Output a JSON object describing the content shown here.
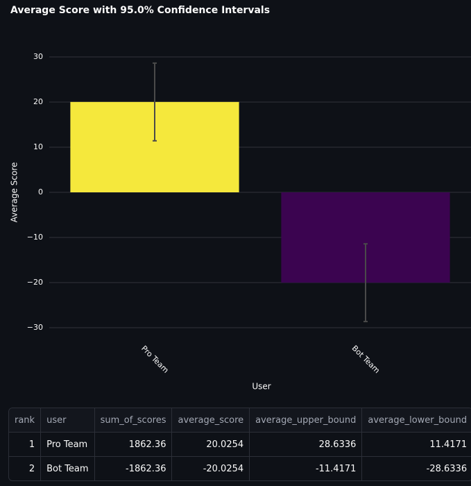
{
  "chart_data": {
    "type": "bar",
    "title": "Average Score with 95.0% Confidence Intervals",
    "x_label": "User",
    "y_label": "Average Score",
    "categories": [
      "Pro Team",
      "Bot Team"
    ],
    "values": [
      20.0254,
      -20.0254
    ],
    "upper": [
      28.6336,
      -11.4171
    ],
    "lower": [
      11.4171,
      -28.6336
    ],
    "colors": [
      "#f5e83c",
      "#3b0450"
    ],
    "error_color": "#4a4a4a",
    "ylim": [
      -34,
      35
    ],
    "yticks": [
      30,
      20,
      10,
      0,
      {
        "value": -10,
        "label": "−10"
      },
      {
        "value": -20,
        "label": "−20"
      },
      {
        "value": -30,
        "label": "−30"
      }
    ],
    "grid": true
  },
  "table": {
    "columns": [
      "rank",
      "user",
      "sum_of_scores",
      "average_score",
      "average_upper_bound",
      "average_lower_bound"
    ],
    "rows": [
      [
        1,
        "Pro Team",
        1862.36,
        20.0254,
        28.6336,
        11.4171
      ],
      [
        2,
        "Bot Team",
        -1862.36,
        -20.0254,
        -11.4171,
        -28.6336
      ]
    ]
  }
}
